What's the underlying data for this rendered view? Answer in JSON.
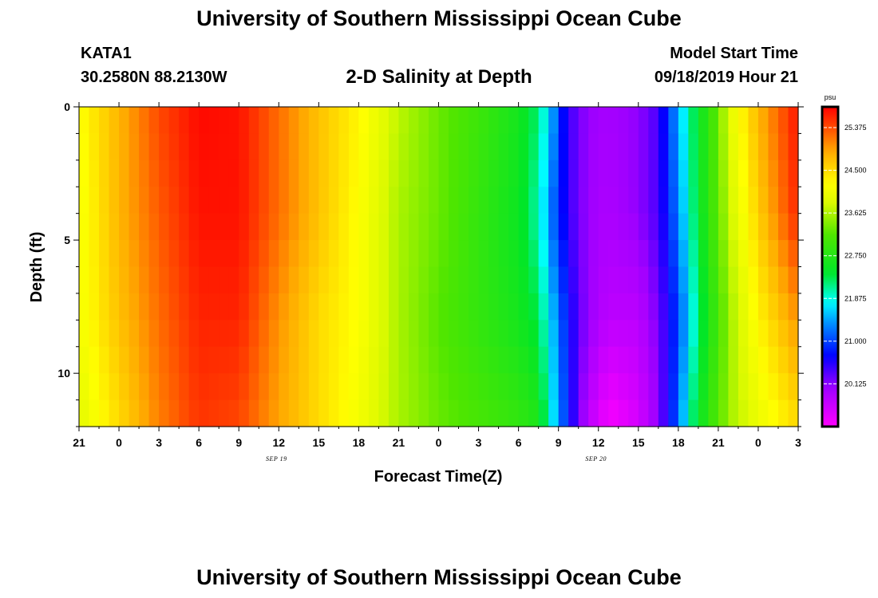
{
  "header": {
    "title": "University of Southern Mississippi Ocean Cube",
    "station": "KATA1",
    "coords": "30.2580N 88.2130W",
    "subtitle": "2-D Salinity at Depth",
    "model_label": "Model Start Time",
    "model_time": "09/18/2019 Hour 21"
  },
  "footer": {
    "title": "University of Southern Mississippi Ocean Cube"
  },
  "chart_data": {
    "type": "heatmap",
    "title": "2-D Salinity at Depth",
    "xlabel": "Forecast Time(Z)",
    "ylabel": "Depth (ft)",
    "x_hours": [
      0,
      54
    ],
    "x_tick_labels": [
      "21",
      "0",
      "3",
      "6",
      "9",
      "12",
      "15",
      "18",
      "21",
      "0",
      "3",
      "6",
      "9",
      "12",
      "15",
      "18",
      "21",
      "0",
      "3"
    ],
    "date_labels": [
      {
        "text": "SEP 19",
        "hour": 15
      },
      {
        "text": "SEP 20",
        "hour": 39
      }
    ],
    "y_range_ft": [
      0,
      12
    ],
    "y_tick_labels": [
      0,
      5,
      10
    ],
    "colorbar": {
      "unit": "psu",
      "min": 19.25,
      "max": 25.8,
      "tick_values": [
        25.375,
        24.5,
        23.625,
        22.75,
        21.875,
        21.0,
        20.125
      ],
      "tick_labels": [
        "25.375",
        "24.500",
        "23.625",
        "22.750",
        "21.875",
        "21.000",
        "20.125"
      ]
    },
    "salinity_psu": {
      "depths_ft": [
        0,
        4,
        8,
        12
      ],
      "hours": [
        0,
        3,
        6,
        9,
        12,
        15,
        18,
        21,
        24,
        27,
        30,
        33,
        34.5,
        35.5,
        36.5,
        37.5,
        39,
        40,
        42,
        43.5,
        45,
        46,
        47.5,
        49,
        51,
        54
      ],
      "rows": [
        [
          24.2,
          24.8,
          25.4,
          25.75,
          25.7,
          25.2,
          24.7,
          24.3,
          23.7,
          23.3,
          23.0,
          22.6,
          22.2,
          21.5,
          20.6,
          20.2,
          20.0,
          20.0,
          20.1,
          20.4,
          21.5,
          22.2,
          23.0,
          24.0,
          24.8,
          25.7
        ],
        [
          24.1,
          24.8,
          25.3,
          25.7,
          25.7,
          25.2,
          24.7,
          24.2,
          23.6,
          23.3,
          22.9,
          22.5,
          22.0,
          21.2,
          20.6,
          20.2,
          19.95,
          19.95,
          20.1,
          20.4,
          21.3,
          22.1,
          23.0,
          23.8,
          24.6,
          25.6
        ],
        [
          24.1,
          24.7,
          25.2,
          25.6,
          25.6,
          25.0,
          24.5,
          24.2,
          23.6,
          23.2,
          22.9,
          22.6,
          22.3,
          21.6,
          20.9,
          20.3,
          19.9,
          19.8,
          19.8,
          20.2,
          21.0,
          21.8,
          22.8,
          23.6,
          24.3,
          25.0
        ],
        [
          23.9,
          24.5,
          25.1,
          25.5,
          25.4,
          24.9,
          24.5,
          24.1,
          23.6,
          23.3,
          23.1,
          22.9,
          22.7,
          21.8,
          21.0,
          20.2,
          19.5,
          19.3,
          19.6,
          20.1,
          21.2,
          22.2,
          23.0,
          23.6,
          24.0,
          24.5
        ]
      ]
    }
  }
}
